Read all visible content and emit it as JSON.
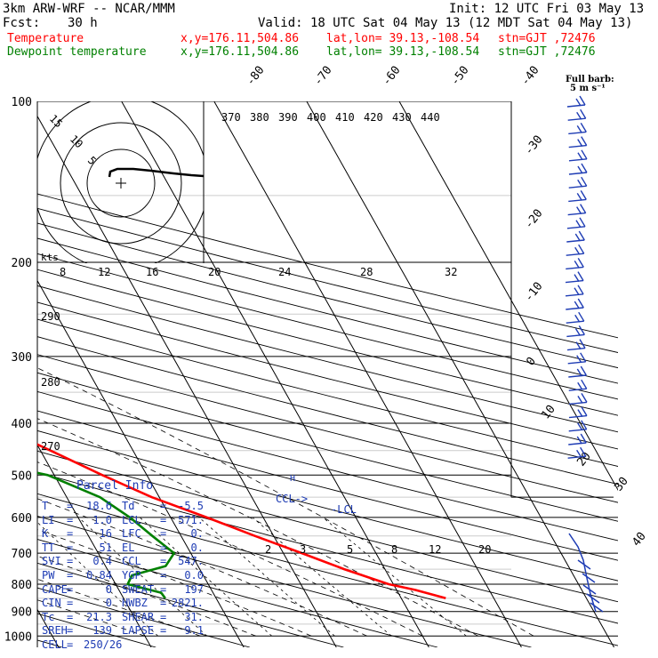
{
  "header": {
    "model": "3km ARW-WRF -- NCAR/MMM",
    "init": "Init: 12 UTC Fri 03 May 13",
    "fcst_label": "Fcst:",
    "fcst_value": "30 h",
    "valid": "Valid: 18 UTC Sat 04 May 13 (12 MDT Sat 04 May 13)"
  },
  "legend": [
    {
      "name": "Temperature",
      "color": "#ff0000",
      "xy": "x,y=176.11,504.86",
      "latlon": "lat,lon= 39.13,-108.54",
      "stn": "stn=GJT ,72476"
    },
    {
      "name": "Dewpoint temperature",
      "color": "#008000",
      "xy": "x,y=176.11,504.86",
      "latlon": "lat,lon= 39.13,-108.54",
      "stn": "stn=GJT ,72476"
    }
  ],
  "full_barb": {
    "line1": "Full barb:",
    "line2": "5 m s⁻¹"
  },
  "hodograph": {
    "ring_labels": [
      "5",
      "10",
      "15"
    ],
    "units": "kts",
    "speed_scale": [
      "8",
      "12",
      "16",
      "20",
      "24",
      "28",
      "32"
    ]
  },
  "parcel_info": {
    "title": "Parcel Info",
    "rows": [
      [
        "T",
        "=",
        "18.6",
        "Td",
        "=",
        "-5.5"
      ],
      [
        "LI",
        "=",
        "1.0",
        "LCL",
        "=",
        "571."
      ],
      [
        "K",
        "=",
        "16",
        "LFC",
        "=",
        "0."
      ],
      [
        "TT",
        "=",
        "51",
        "EL",
        "=",
        "0."
      ],
      [
        "SVI",
        "=",
        "0.4",
        "CCL",
        "=",
        "547."
      ],
      [
        "PW",
        "=",
        "0.84",
        "YGP",
        "=",
        "0.0"
      ],
      [
        "CAPE",
        "=",
        "0",
        "SWEAT",
        "=",
        "197"
      ],
      [
        "CIN",
        "=",
        "0",
        "HWBZ",
        "=",
        "2821."
      ],
      [
        "Tc",
        "=",
        "21.3",
        "SHEAR",
        "=",
        "31."
      ],
      [
        "SREH",
        "=",
        "139",
        "LAPSE",
        "=",
        "9.1"
      ],
      [
        "CELL",
        "=",
        "250/26",
        "",
        "",
        ""
      ]
    ]
  },
  "chart_data": {
    "type": "line",
    "title": "",
    "xlabel": "",
    "ylabel": "",
    "pressure_ticks": [
      100,
      200,
      300,
      400,
      500,
      600,
      700,
      800,
      900,
      1000
    ],
    "isotherm_labels": [
      -80,
      -70,
      -60,
      -50,
      -40,
      -30,
      -20,
      -10,
      0,
      10,
      20,
      30,
      40
    ],
    "theta_labels": [
      370,
      380,
      390,
      400,
      410,
      420,
      430,
      440
    ],
    "mixing_ratio_labels": [
      2,
      3,
      5,
      8,
      12,
      20
    ],
    "left_theta_labels": [
      290,
      280,
      270
    ],
    "markers": [
      "LCL",
      "CCL"
    ],
    "series": [
      {
        "name": "Temperature",
        "color": "#ff0000",
        "points": [
          [
            850,
            24.8
          ],
          [
            820,
            22.0
          ],
          [
            800,
            19.5
          ],
          [
            750,
            15.6
          ],
          [
            700,
            12.0
          ],
          [
            650,
            8.0
          ],
          [
            600,
            3.9
          ],
          [
            550,
            -0.8
          ],
          [
            500,
            -4.8
          ],
          [
            450,
            -8.9
          ],
          [
            400,
            -13.6
          ],
          [
            350,
            -19.3
          ],
          [
            300,
            -25.8
          ],
          [
            260,
            -32.0
          ],
          [
            230,
            -38.3
          ],
          [
            200,
            -46.3
          ],
          [
            180,
            -52.0
          ],
          [
            160,
            -55.5
          ],
          [
            140,
            -58.0
          ],
          [
            125,
            -60.4
          ],
          [
            110,
            -60.4
          ],
          [
            100,
            -61.0
          ]
        ]
      },
      {
        "name": "Dewpoint temperature",
        "color": "#008000",
        "points": [
          [
            850,
            -5.5
          ],
          [
            830,
            -5.6
          ],
          [
            800,
            -8.7
          ],
          [
            770,
            -7.7
          ],
          [
            740,
            -3.5
          ],
          [
            700,
            -1.8
          ],
          [
            650,
            -3.1
          ],
          [
            600,
            -4.4
          ],
          [
            550,
            -6.4
          ],
          [
            500,
            -10.7
          ],
          [
            470,
            -17.1
          ],
          [
            440,
            -27.2
          ],
          [
            400,
            -35.8
          ],
          [
            370,
            -36.3
          ],
          [
            340,
            -38.7
          ],
          [
            300,
            -44.0
          ],
          [
            250,
            -51.5
          ],
          [
            200,
            -59.7
          ],
          [
            170,
            -63.9
          ],
          [
            150,
            -64.4
          ],
          [
            130,
            -63.6
          ],
          [
            115,
            -64.8
          ],
          [
            100,
            -67.0
          ]
        ]
      }
    ]
  }
}
